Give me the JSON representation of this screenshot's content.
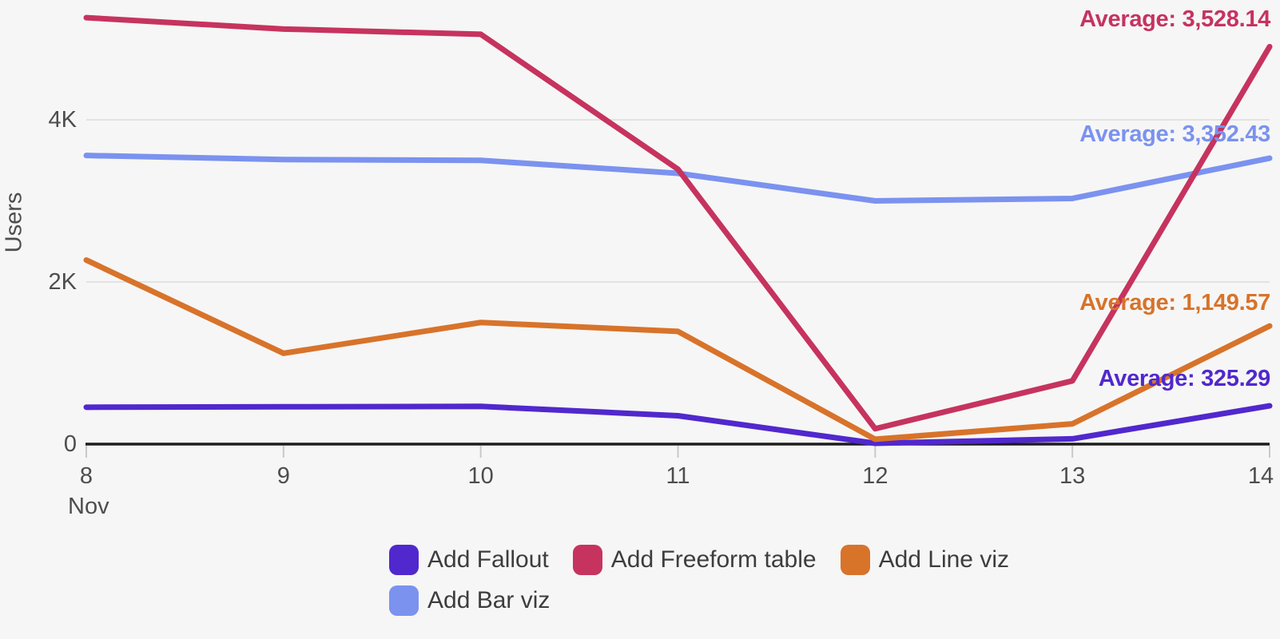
{
  "chart_data": {
    "type": "line",
    "title": "",
    "xlabel": "Nov",
    "ylabel": "Users",
    "categories": [
      "8",
      "9",
      "10",
      "11",
      "12",
      "13",
      "14"
    ],
    "y_ticks": [
      {
        "value": 0,
        "label": "0"
      },
      {
        "value": 2000,
        "label": "2K"
      },
      {
        "value": 4000,
        "label": "4K"
      }
    ],
    "ylim": [
      0,
      5478
    ],
    "grid": "horizontal",
    "legend_position": "bottom",
    "axis_color": "#1c1c1c",
    "gridline_color": "#e2e2e2",
    "tick_mark_color": "#c9c9c9",
    "series": [
      {
        "name": "Add Fallout",
        "color": "#5128cd",
        "values": [
          455,
          460,
          465,
          350,
          10,
          65,
          472
        ],
        "average": 325.29,
        "average_label": "Average: 325.29"
      },
      {
        "name": "Add Freeform table",
        "color": "#c6335f",
        "values": [
          5260,
          5120,
          5055,
          3390,
          190,
          780,
          4902
        ],
        "average": 3528.14,
        "average_label": "Average: 3,528.14"
      },
      {
        "name": "Add Line viz",
        "color": "#d8732a",
        "values": [
          2270,
          1120,
          1500,
          1390,
          60,
          250,
          1457
        ],
        "average": 1149.57,
        "average_label": "Average: 1,149.57"
      },
      {
        "name": "Add Bar viz",
        "color": "#7b92ef",
        "values": [
          3560,
          3510,
          3500,
          3340,
          3000,
          3030,
          3527
        ],
        "average": 3352.43,
        "average_label": "Average: 3,352.43"
      }
    ]
  }
}
